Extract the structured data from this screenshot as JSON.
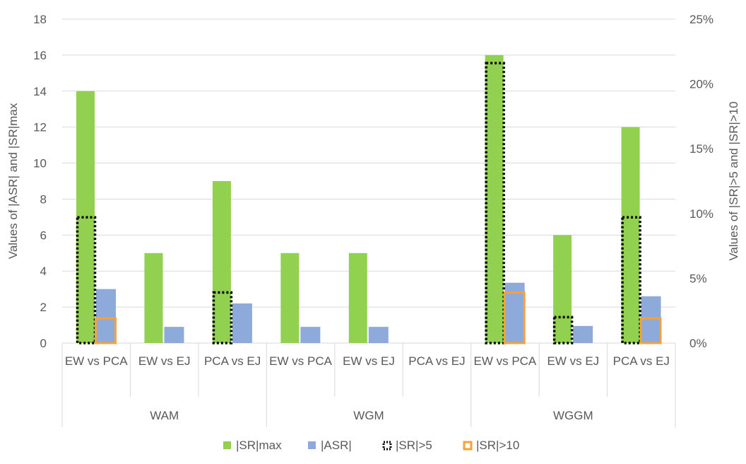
{
  "chart_data": {
    "type": "bar",
    "title": "",
    "categories": [
      {
        "group": "WAM",
        "label": "EW vs PCA"
      },
      {
        "group": "WAM",
        "label": "EW vs EJ"
      },
      {
        "group": "WAM",
        "label": "PCA vs EJ"
      },
      {
        "group": "WGM",
        "label": "EW vs PCA"
      },
      {
        "group": "WGM",
        "label": "EW vs EJ"
      },
      {
        "group": "WGM",
        "label": "PCA vs EJ"
      },
      {
        "group": "WGGM",
        "label": "EW vs PCA"
      },
      {
        "group": "WGGM",
        "label": "EW vs EJ"
      },
      {
        "group": "WGGM",
        "label": "PCA vs EJ"
      }
    ],
    "groups": [
      "WAM",
      "WGM",
      "WGGM"
    ],
    "ylabel": "Values of |ASR| and |SR|max",
    "y2label": "Values of |SR|>5 and |SR|>10",
    "ylim": [
      0,
      18
    ],
    "yticks": [
      0,
      2,
      4,
      6,
      8,
      10,
      12,
      14,
      16,
      18
    ],
    "y2lim": [
      0,
      25
    ],
    "y2ticks": [
      "0%",
      "5%",
      "10%",
      "15%",
      "20%",
      "25%"
    ],
    "y2tick_values": [
      0,
      5,
      10,
      15,
      20,
      25
    ],
    "grid": true,
    "legend_position": "bottom",
    "series": [
      {
        "name": "|SR|max",
        "axis": "left",
        "style": "filled",
        "color": "#92d050",
        "values": [
          14,
          5,
          9,
          5,
          5,
          0,
          16,
          6,
          12
        ]
      },
      {
        "name": "|ASR|",
        "axis": "left",
        "style": "filled",
        "color": "#8eaadb",
        "values": [
          3,
          0.9,
          2.2,
          0.9,
          0.9,
          0,
          3.35,
          0.95,
          2.6
        ]
      },
      {
        "name": "|SR|>5",
        "axis": "right",
        "style": "dotted-outline",
        "color": "#000000",
        "values": [
          9.7,
          0,
          3.9,
          0,
          0,
          0,
          21.6,
          2.0,
          9.7
        ]
      },
      {
        "name": "|SR|>10",
        "axis": "right",
        "style": "solid-outline",
        "color": "#f4a23a",
        "values": [
          1.9,
          0,
          0,
          0,
          0,
          0,
          3.9,
          0,
          1.9
        ]
      }
    ]
  }
}
